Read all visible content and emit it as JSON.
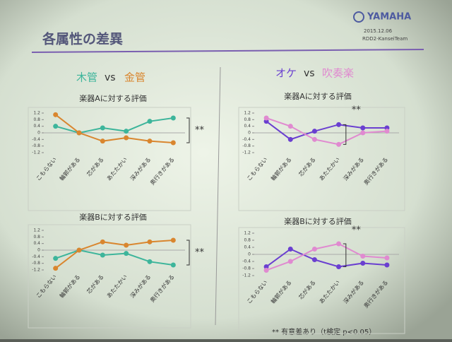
{
  "header": {
    "title": "各属性の差異",
    "logo": "YAMAHA",
    "date": "2015.12.06",
    "team": "RDD2-KanseiTeam"
  },
  "sections": [
    {
      "left": "木管",
      "vs": "vs",
      "right": "金管"
    },
    {
      "left": "オケ",
      "vs": "vs",
      "right": "吹奏楽"
    }
  ],
  "footnote": "** 有意差あり（t検定 p<0.05）",
  "chart_data": [
    {
      "type": "line",
      "title": "楽器Aに対する評価",
      "annotation": "**",
      "categories": [
        "こもらない",
        "輪郭がある",
        "芯がある",
        "あたたかい",
        "深みがある",
        "奥行きがある"
      ],
      "ylim": [
        -1.2,
        1.2
      ],
      "yticks": [
        1.2,
        0.8,
        0.4,
        0,
        -0.4,
        -0.8,
        -1.2
      ],
      "series": [
        {
          "color": "#3db59b",
          "values": [
            0.4,
            0.0,
            0.3,
            0.1,
            0.7,
            0.9
          ]
        },
        {
          "color": "#d9862f",
          "values": [
            1.1,
            0.0,
            -0.5,
            -0.3,
            -0.5,
            -0.6
          ]
        }
      ]
    },
    {
      "type": "line",
      "title": "楽器Bに対する評価",
      "annotation": "**",
      "categories": [
        "こもらない",
        "輪郭がある",
        "芯がある",
        "あたたかい",
        "深みがある",
        "奥行きがある"
      ],
      "ylim": [
        -1.2,
        1.2
      ],
      "yticks": [
        1.2,
        0.8,
        0.4,
        0,
        -0.4,
        -0.8,
        -1.2
      ],
      "series": [
        {
          "color": "#3db59b",
          "values": [
            -0.5,
            0.0,
            -0.3,
            -0.2,
            -0.7,
            -0.9
          ]
        },
        {
          "color": "#d9862f",
          "values": [
            -1.1,
            0.0,
            0.5,
            0.3,
            0.5,
            0.6
          ]
        }
      ]
    },
    {
      "type": "line",
      "title": "楽器Aに対する評価",
      "annotation": "**",
      "categories": [
        "こもらない",
        "輪郭がある",
        "芯がある",
        "あたたかい",
        "深みがある",
        "奥行きがある"
      ],
      "ylim": [
        -1.2,
        1.2
      ],
      "yticks": [
        1.2,
        0.8,
        0.4,
        0,
        -0.4,
        -0.8,
        -1.2
      ],
      "series": [
        {
          "color": "#6a3fd0",
          "values": [
            0.7,
            -0.4,
            0.1,
            0.5,
            0.3,
            0.3
          ]
        },
        {
          "color": "#e08ad0",
          "values": [
            0.9,
            0.4,
            -0.4,
            -0.7,
            0.0,
            0.1
          ]
        }
      ]
    },
    {
      "type": "line",
      "title": "楽器Bに対する評価",
      "annotation": "**",
      "categories": [
        "こもらない",
        "輪郭がある",
        "芯がある",
        "あたたかい",
        "深みがある",
        "奥行きがある"
      ],
      "ylim": [
        -1.2,
        1.2
      ],
      "yticks": [
        1.2,
        0.8,
        0.4,
        0,
        -0.4,
        -0.8,
        -1.2
      ],
      "series": [
        {
          "color": "#6a3fd0",
          "values": [
            -0.7,
            0.3,
            -0.3,
            -0.7,
            -0.5,
            -0.6
          ]
        },
        {
          "color": "#e08ad0",
          "values": [
            -0.9,
            -0.4,
            0.3,
            0.6,
            -0.1,
            -0.2
          ]
        }
      ]
    }
  ]
}
